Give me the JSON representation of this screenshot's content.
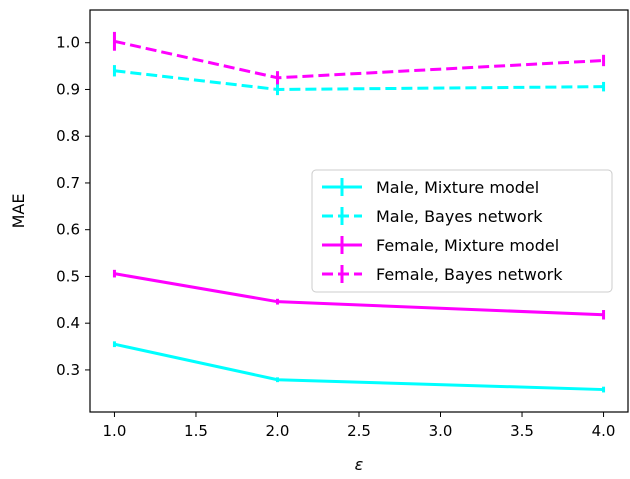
{
  "chart_data": {
    "type": "line",
    "title": "",
    "xlabel": "ε",
    "ylabel": "MAE",
    "xlim": [
      0.85,
      4.15
    ],
    "ylim": [
      0.21,
      1.07
    ],
    "xticks": [
      "1.0",
      "1.5",
      "2.0",
      "2.5",
      "3.0",
      "3.5",
      "4.0"
    ],
    "yticks": [
      "0.3",
      "0.4",
      "0.5",
      "0.6",
      "0.7",
      "0.8",
      "0.9",
      "1.0"
    ],
    "grid": false,
    "legend_position": "center-right",
    "x": [
      1.0,
      2.0,
      4.0
    ],
    "series": [
      {
        "name": "Male, Mixture model",
        "values": [
          0.355,
          0.279,
          0.258
        ],
        "errors": [
          0.004,
          0.003,
          0.004
        ],
        "color": "#00ffff",
        "style": "solid"
      },
      {
        "name": "Male, Bayes network",
        "values": [
          0.94,
          0.9,
          0.906
        ],
        "errors": [
          0.01,
          0.01,
          0.008
        ],
        "color": "#00ffff",
        "style": "dashed"
      },
      {
        "name": "Female, Mixture model",
        "values": [
          0.506,
          0.446,
          0.418
        ],
        "errors": [
          0.006,
          0.004,
          0.008
        ],
        "color": "#ff00ff",
        "style": "solid"
      },
      {
        "name": "Female, Bayes network",
        "values": [
          1.003,
          0.925,
          0.962
        ],
        "errors": [
          0.018,
          0.012,
          0.01
        ],
        "color": "#ff00ff",
        "style": "dashed"
      }
    ]
  }
}
